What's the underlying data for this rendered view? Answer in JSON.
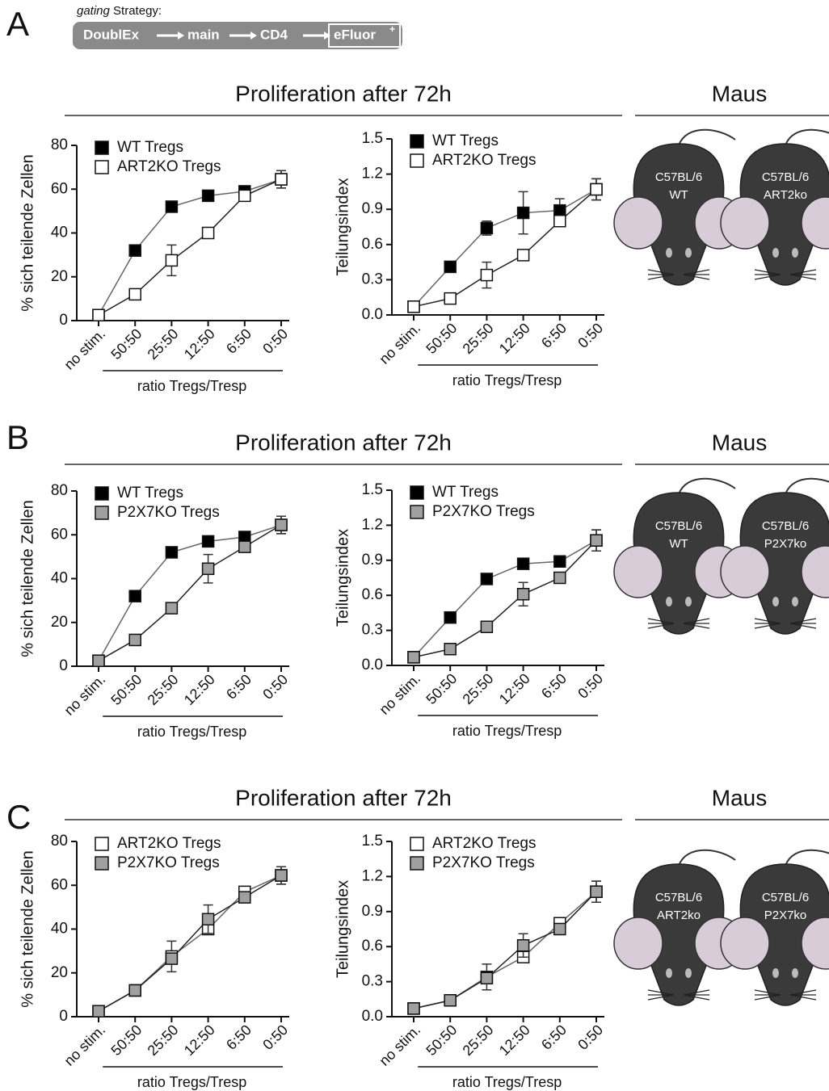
{
  "gating": {
    "label_italic": "gating",
    "label_rest": "Strategy:",
    "steps": [
      "DoublEx",
      "main",
      "CD4",
      "eFluor"
    ],
    "last_superscript": "+"
  },
  "panels": [
    {
      "letter": "A",
      "heading": "Proliferation after 72h",
      "side_heading": "Maus",
      "mice": [
        [
          "C57BL/6",
          "WT"
        ],
        [
          "C57BL/6",
          "ART2ko"
        ]
      ]
    },
    {
      "letter": "B",
      "heading": "Proliferation after 72h",
      "side_heading": "Maus",
      "mice": [
        [
          "C57BL/6",
          "WT"
        ],
        [
          "C57BL/6",
          "P2X7ko"
        ]
      ]
    },
    {
      "letter": "C",
      "heading": "Proliferation after 72h",
      "side_heading": "Maus",
      "mice": [
        [
          "C57BL/6",
          "ART2ko"
        ],
        [
          "C57BL/6",
          "P2X7ko"
        ]
      ]
    }
  ],
  "chart_data": [
    {
      "type": "line",
      "ylabel": "% sich teilende Zellen",
      "xlabel": "ratio Tregs/Tresp",
      "categories": [
        "no stim.",
        "50:50",
        "25:50",
        "12:50",
        "6:50",
        "0:50"
      ],
      "ylim": [
        0,
        80
      ],
      "yticks": [
        0,
        20,
        40,
        60,
        80
      ],
      "legend": "upper left",
      "series": [
        {
          "name": "WT Tregs",
          "color": "#000000",
          "values": [
            2.5,
            32,
            52,
            57,
            59,
            64.5
          ],
          "errors": [
            1,
            1,
            1,
            1,
            1,
            4
          ]
        },
        {
          "name": "ART2KO Tregs",
          "color": "#ffffff",
          "values": [
            2.5,
            12,
            27.5,
            40,
            57,
            64.5
          ],
          "errors": [
            1,
            1,
            7,
            2,
            1,
            4
          ]
        }
      ]
    },
    {
      "type": "line",
      "ylabel": "Teilungsindex",
      "xlabel": "ratio Tregs/Tresp",
      "categories": [
        "no stim.",
        "50:50",
        "25:50",
        "12:50",
        "6:50",
        "0:50"
      ],
      "ylim": [
        0,
        1.5
      ],
      "yticks": [
        {
          "value": 0,
          "label": "0.0"
        },
        0.3,
        0.6,
        0.9,
        1.2,
        1.5
      ],
      "legend": "upper left",
      "series": [
        {
          "name": "WT Tregs",
          "color": "#000000",
          "values": [
            0.07,
            0.41,
            0.74,
            0.87,
            0.89,
            1.07
          ],
          "errors": [
            0.02,
            0.04,
            0.06,
            0.18,
            0.1,
            0.09
          ]
        },
        {
          "name": "ART2KO Tregs",
          "color": "#ffffff",
          "values": [
            0.07,
            0.14,
            0.34,
            0.51,
            0.8,
            1.07
          ],
          "errors": [
            0.02,
            0.02,
            0.11,
            0.03,
            0.03,
            0.09
          ]
        }
      ]
    },
    {
      "type": "line",
      "ylabel": "% sich teilende Zellen",
      "xlabel": "ratio Tregs/Tresp",
      "categories": [
        "no stim.",
        "50:50",
        "25:50",
        "12:50",
        "6:50",
        "0:50"
      ],
      "ylim": [
        0,
        80
      ],
      "yticks": [
        0,
        20,
        40,
        60,
        80
      ],
      "legend": "upper left",
      "series": [
        {
          "name": "WT Tregs",
          "color": "#000000",
          "values": [
            2.5,
            32,
            52,
            57,
            59,
            64.5
          ],
          "errors": [
            1,
            1,
            1,
            1,
            1,
            4
          ]
        },
        {
          "name": "P2X7KO Tregs",
          "color": "#a0a0a0",
          "values": [
            2.5,
            12,
            26.5,
            44.5,
            54.5,
            64.5
          ],
          "errors": [
            1,
            1,
            1,
            6.5,
            2,
            4
          ]
        }
      ]
    },
    {
      "type": "line",
      "ylabel": "Teilungsindex",
      "xlabel": "ratio Tregs/Tresp",
      "categories": [
        "no stim.",
        "50:50",
        "25:50",
        "12:50",
        "6:50",
        "0:50"
      ],
      "ylim": [
        0,
        1.5
      ],
      "yticks": [
        {
          "value": 0,
          "label": "0.0"
        },
        0.3,
        0.6,
        0.9,
        1.2,
        1.5
      ],
      "legend": "upper left",
      "series": [
        {
          "name": "WT Tregs",
          "color": "#000000",
          "values": [
            0.07,
            0.41,
            0.74,
            0.87,
            0.89,
            1.07
          ],
          "errors": [
            0.02,
            0.02,
            0.02,
            0.03,
            0.03,
            0.09
          ]
        },
        {
          "name": "P2X7KO Tregs",
          "color": "#a0a0a0",
          "values": [
            0.07,
            0.14,
            0.33,
            0.61,
            0.75,
            1.07
          ],
          "errors": [
            0.02,
            0.02,
            0.02,
            0.1,
            0.03,
            0.09
          ]
        }
      ]
    },
    {
      "type": "line",
      "ylabel": "% sich teilende Zellen",
      "xlabel": "ratio Tregs/Tresp",
      "categories": [
        "no stim.",
        "50:50",
        "25:50",
        "12:50",
        "6:50",
        "0:50"
      ],
      "ylim": [
        0,
        80
      ],
      "yticks": [
        0,
        20,
        40,
        60,
        80
      ],
      "legend": "upper left",
      "series": [
        {
          "name": "ART2KO Tregs",
          "color": "#ffffff",
          "values": [
            2.5,
            12,
            27.5,
            40,
            57,
            64.5
          ],
          "errors": [
            1,
            1,
            7,
            2,
            1,
            4
          ]
        },
        {
          "name": "P2X7KO Tregs",
          "color": "#a0a0a0",
          "values": [
            2.5,
            12,
            26.5,
            44.5,
            54.5,
            64.5
          ],
          "errors": [
            1,
            1,
            1,
            6.5,
            2,
            4
          ]
        }
      ]
    },
    {
      "type": "line",
      "ylabel": "Teilungsindex",
      "xlabel": "ratio Tregs/Tresp",
      "categories": [
        "no stim.",
        "50:50",
        "25:50",
        "12:50",
        "6:50",
        "0:50"
      ],
      "ylim": [
        0,
        1.5
      ],
      "yticks": [
        {
          "value": 0,
          "label": "0.0"
        },
        0.3,
        0.6,
        0.9,
        1.2,
        1.5
      ],
      "legend": "upper left",
      "series": [
        {
          "name": "ART2KO Tregs",
          "color": "#ffffff",
          "values": [
            0.07,
            0.14,
            0.34,
            0.51,
            0.8,
            1.07
          ],
          "errors": [
            0.02,
            0.02,
            0.11,
            0.03,
            0.03,
            0.09
          ]
        },
        {
          "name": "P2X7KO Tregs",
          "color": "#a0a0a0",
          "values": [
            0.07,
            0.14,
            0.33,
            0.61,
            0.75,
            1.07
          ],
          "errors": [
            0.02,
            0.02,
            0.02,
            0.1,
            0.03,
            0.09
          ]
        }
      ]
    }
  ]
}
